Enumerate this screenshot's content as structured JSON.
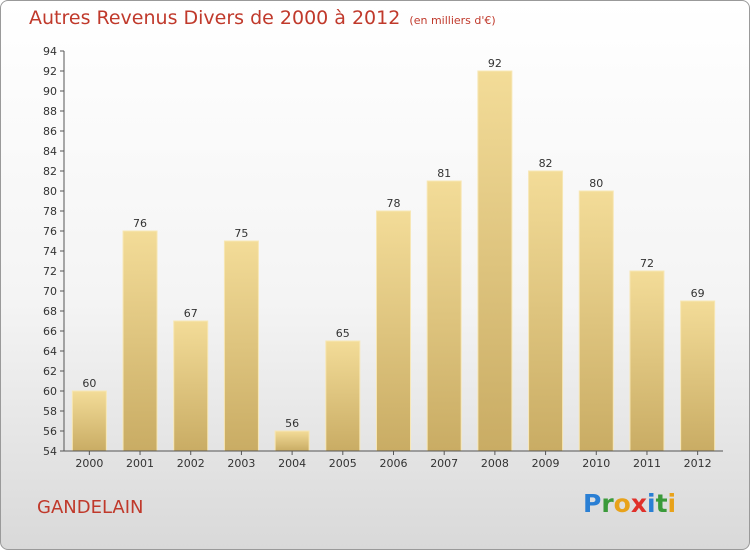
{
  "header": {
    "title": "Autres Revenus Divers de 2000 à 2012",
    "unit": "(en milliers d'€)"
  },
  "place_name": "GANDELAIN",
  "logo": {
    "text": "Proxiti"
  },
  "colors": {
    "bar_light": "#f3dc98",
    "bar_dark": "#c9ac64",
    "title": "#c0392b"
  },
  "chart_data": {
    "type": "bar",
    "title": "Autres Revenus Divers de 2000 à 2012",
    "subtitle": "(en milliers d'€)",
    "xlabel": "",
    "ylabel": "",
    "categories": [
      "2000",
      "2001",
      "2002",
      "2003",
      "2004",
      "2005",
      "2006",
      "2007",
      "2008",
      "2009",
      "2010",
      "2011",
      "2012"
    ],
    "values": [
      60,
      76,
      67,
      75,
      56,
      65,
      78,
      81,
      92,
      82,
      80,
      72,
      69
    ],
    "ylim": [
      54,
      94
    ],
    "ytick_step": 2,
    "grid": false,
    "legend": "none"
  }
}
